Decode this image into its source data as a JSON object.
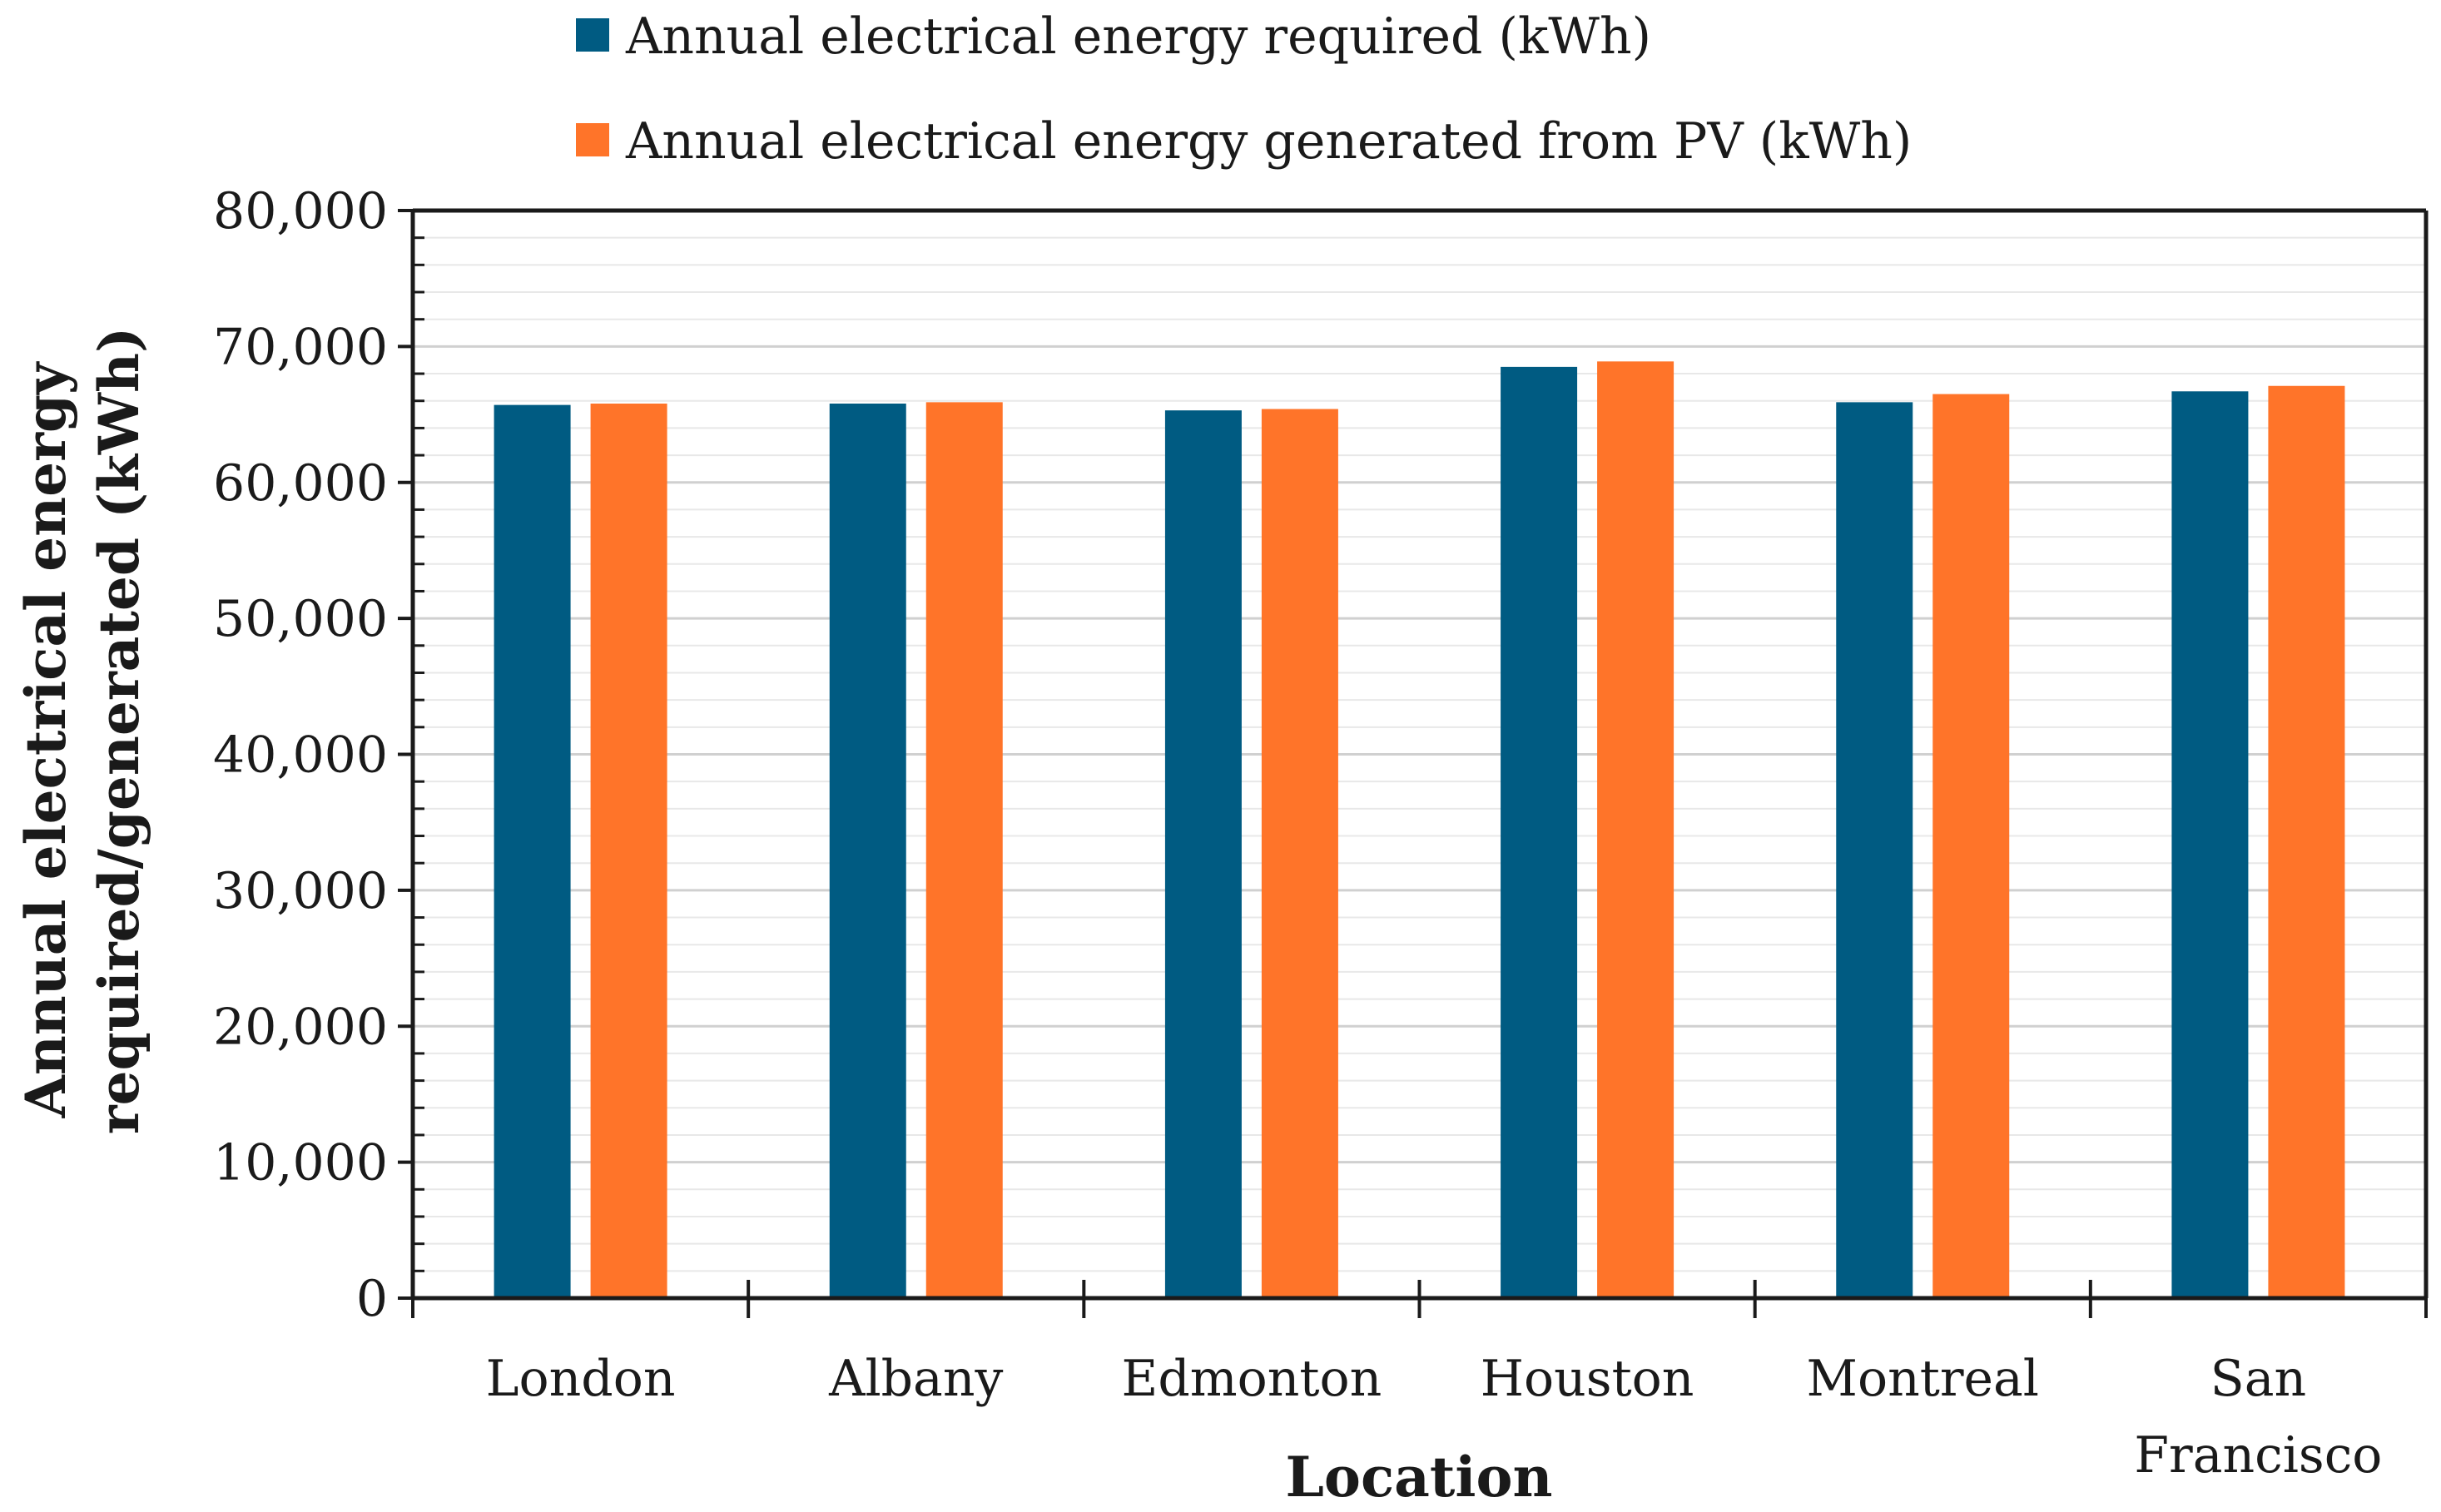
{
  "chart_data": {
    "type": "bar",
    "title": "",
    "xlabel": "Location",
    "ylabel_lines": [
      "Annual electrical energy",
      "required/generated (kWh)"
    ],
    "categories": [
      [
        "London"
      ],
      [
        "Albany"
      ],
      [
        "Edmonton"
      ],
      [
        "Houston"
      ],
      [
        "Montreal"
      ],
      [
        "San",
        "Francisco"
      ]
    ],
    "series": [
      {
        "name": "Annual electrical energy required (kWh)",
        "color": "#005b82",
        "values": [
          65700,
          65800,
          65300,
          68500,
          65900,
          66700
        ]
      },
      {
        "name": "Annual electrical energy generated from PV (kWh)",
        "color": "#ff7429",
        "values": [
          65800,
          65900,
          65400,
          68900,
          66500,
          67100
        ]
      }
    ],
    "ylim": [
      0,
      80000
    ],
    "yticks": [
      "0",
      "10,000",
      "20,000",
      "30,000",
      "40,000",
      "50,000",
      "60,000",
      "70,000",
      "80,000"
    ],
    "ytick_values": [
      0,
      10000,
      20000,
      30000,
      40000,
      50000,
      60000,
      70000,
      80000
    ],
    "minor_step": 2000,
    "grid": true,
    "legend_position": "top"
  }
}
